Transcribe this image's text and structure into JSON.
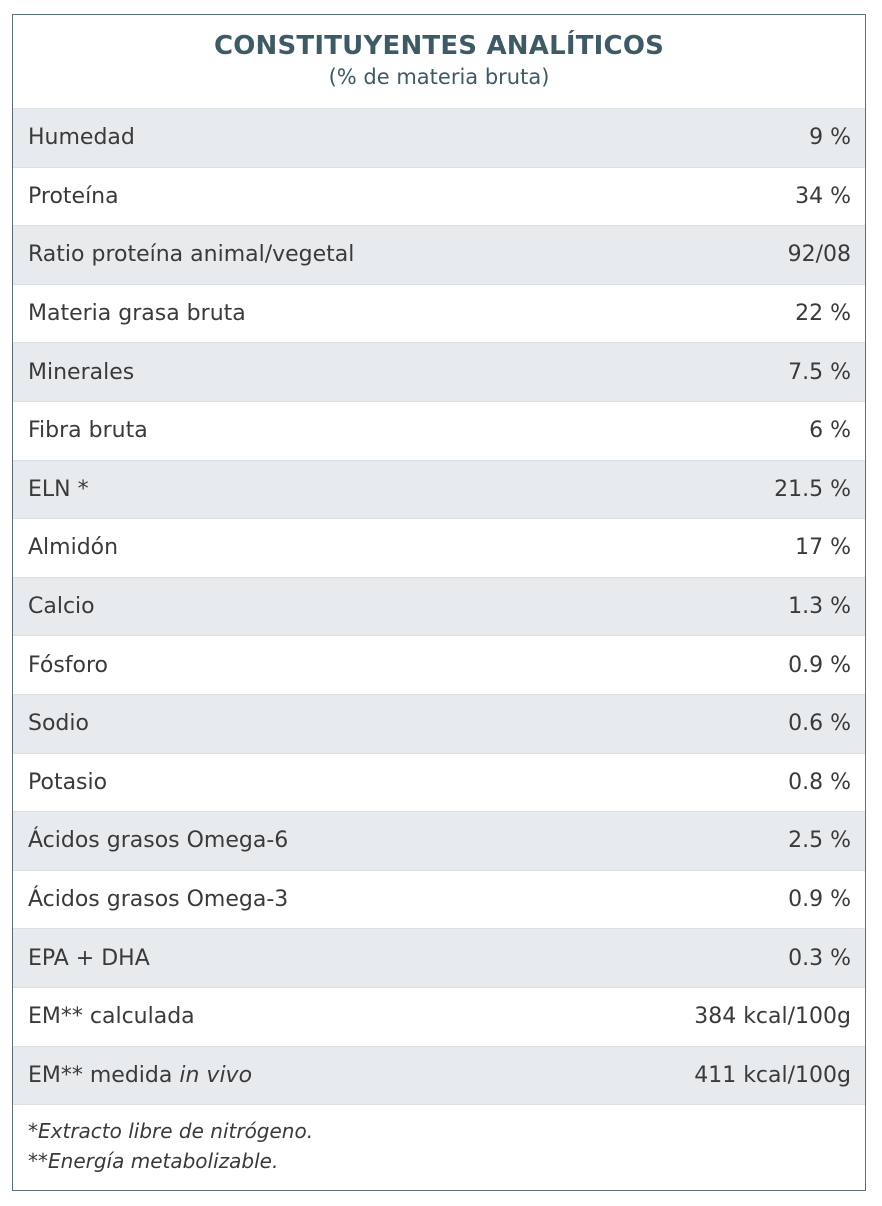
{
  "header": {
    "title": "CONSTITUYENTES ANALÍTICOS",
    "subtitle": "(% de materia bruta)"
  },
  "rows": [
    {
      "label": "Humedad",
      "value": "9 %"
    },
    {
      "label": "Proteína",
      "value": "34 %"
    },
    {
      "label": "Ratio proteína animal/vegetal",
      "value": "92/08"
    },
    {
      "label": "Materia grasa bruta",
      "value": "22 %"
    },
    {
      "label": "Minerales",
      "value": "7.5 %"
    },
    {
      "label": "Fibra bruta",
      "value": "6 %"
    },
    {
      "label": "ELN *",
      "value": "21.5 %"
    },
    {
      "label": "Almidón",
      "value": "17 %"
    },
    {
      "label": "Calcio",
      "value": "1.3 %"
    },
    {
      "label": "Fósforo",
      "value": "0.9 %"
    },
    {
      "label": "Sodio",
      "value": "0.6 %"
    },
    {
      "label": "Potasio",
      "value": "0.8 %"
    },
    {
      "label": "Ácidos grasos Omega-6",
      "value": "2.5 %"
    },
    {
      "label": "Ácidos grasos Omega-3",
      "value": "0.9 %"
    },
    {
      "label": "EPA + DHA",
      "value": "0.3 %"
    },
    {
      "label": "EM** calculada",
      "value": "384 kcal/100g"
    },
    {
      "label": "EM** medida",
      "label_italic": "in vivo",
      "value": "411 kcal/100g"
    }
  ],
  "notes": {
    "note1": "*Extracto libre de nitrógeno.",
    "note2": "**Energía metabolizable."
  }
}
